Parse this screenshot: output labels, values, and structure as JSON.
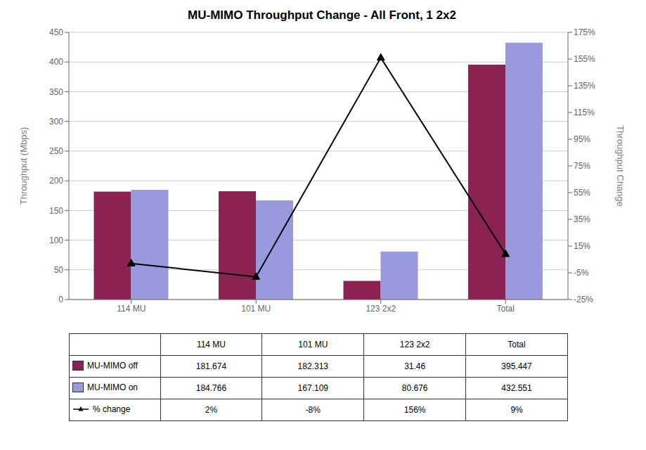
{
  "chart_data": {
    "type": "bar",
    "title": "MU-MIMO Throughput Change - All Front, 1 2x2",
    "categories": [
      "114 MU",
      "101 MU",
      "123 2x2",
      "Total"
    ],
    "series": [
      {
        "name": "MU-MIMO off",
        "color": "#8B2252",
        "values": [
          181.674,
          182.313,
          31.46,
          395.447
        ]
      },
      {
        "name": "MU-MIMO on",
        "color": "#9999DD",
        "values": [
          184.766,
          167.109,
          80.676,
          432.551
        ]
      },
      {
        "name": "% change",
        "type": "line",
        "axis": "y2",
        "color": "#000000",
        "marker": "triangle",
        "values": [
          2,
          -8,
          156,
          9
        ],
        "value_labels": [
          "2%",
          "-8%",
          "156%",
          "9%"
        ]
      }
    ],
    "y_label": "Throughput (Mbps)",
    "y2_label": "Throughput Change",
    "ylim": [
      0,
      450
    ],
    "yticks": [
      0,
      50,
      100,
      150,
      200,
      250,
      300,
      350,
      400,
      450
    ],
    "y2lim": [
      -25,
      175
    ],
    "y2ticks": [
      {
        "value": -25,
        "label": "-25%"
      },
      {
        "value": -5,
        "label": "-5%"
      },
      {
        "value": 15,
        "label": "15%"
      },
      {
        "value": 35,
        "label": "35%"
      },
      {
        "value": 55,
        "label": "55%"
      },
      {
        "value": 75,
        "label": "75%"
      },
      {
        "value": 95,
        "label": "95%"
      },
      {
        "value": 115,
        "label": "115%"
      },
      {
        "value": 135,
        "label": "135%"
      },
      {
        "value": 155,
        "label": "155%"
      },
      {
        "value": 175,
        "label": "175%"
      }
    ],
    "grid": true
  }
}
